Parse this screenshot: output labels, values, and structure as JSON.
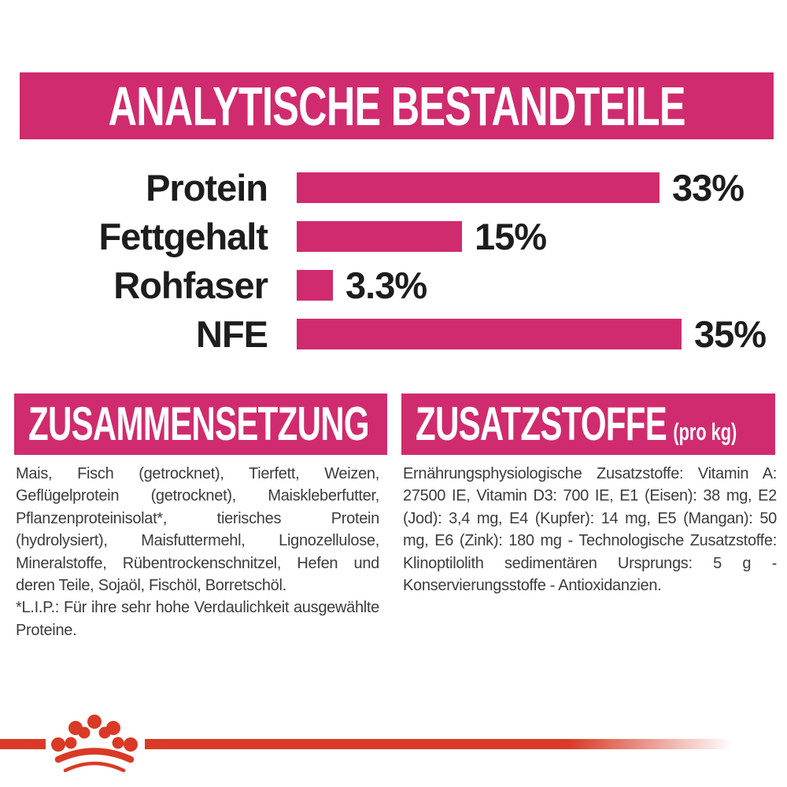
{
  "header": {
    "title": "ANALYTISCHE BESTANDTEILE"
  },
  "chart_data": {
    "type": "bar",
    "orientation": "horizontal",
    "title": "ANALYTISCHE BESTANDTEILE",
    "categories": [
      "Protein",
      "Fettgehalt",
      "Rohfaser",
      "NFE"
    ],
    "values": [
      33,
      15,
      3.3,
      35
    ],
    "value_labels": [
      "33%",
      "15%",
      "3.3%",
      "35%"
    ],
    "unit": "%",
    "xlim": [
      0,
      35
    ],
    "bar_color": "#d02b6e",
    "grid": false,
    "legend": false
  },
  "sections": {
    "composition": {
      "title": "ZUSAMMENSETZUNG",
      "body": "Mais, Fisch (getrocknet), Tierfett, Weizen, Geflügelprotein (getrocknet), Maiskleberfutter, Pflanzenproteinisolat*, tierisches Protein (hydrolysiert), Maisfuttermehl, Lignozellulose, Mineralstoffe, Rübentrockenschnitzel, Hefen und deren Teile, Sojaöl, Fischöl, Borretschöl.",
      "footnote": "*L.I.P.: Für ihre sehr hohe Verdaulichkeit ausgewählte Proteine."
    },
    "additives": {
      "title": "ZUSATZSTOFFE",
      "title_suffix": "(pro kg)",
      "body": "Ernährungsphysiologische Zusatzstoffe: Vitamin A: 27500 IE, Vitamin D3: 700 IE, E1 (Eisen): 38 mg, E2 (Jod): 3,4 mg, E4 (Kupfer): 14 mg, E5 (Mangan): 50 mg, E6 (Zink): 180 mg - Technologische Zusatzstoffe: Klinoptilolith sedimentären Ursprungs: 5 g - Konservierungsstoffe - Antioxidanzien."
    }
  },
  "footer": {
    "brand_icon": "royal-canin-crown"
  },
  "colors": {
    "accent_pink": "#d02b6e",
    "brand_red": "#d93a26",
    "text_dark": "#3c3c3c",
    "label_black": "#1d1d1d",
    "background": "#ffffff"
  }
}
